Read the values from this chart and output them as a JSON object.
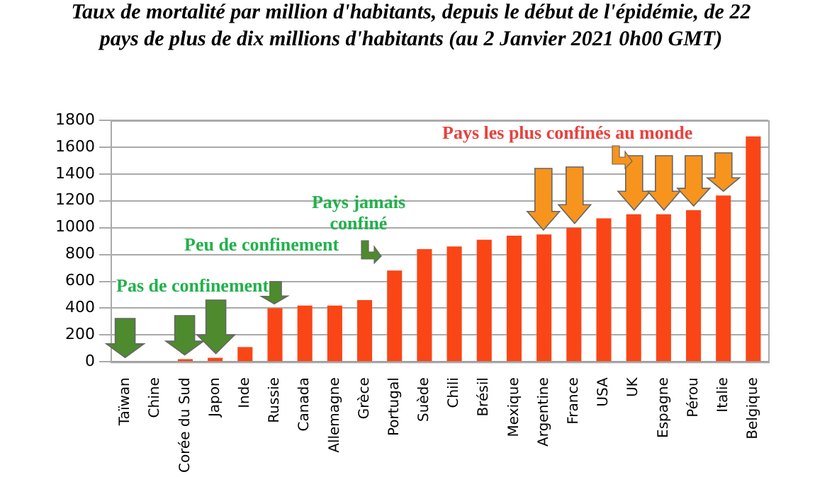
{
  "chart_data": {
    "type": "bar",
    "title": "Taux de mortalité par million d'habitants, depuis le début de l'épidémie, de 22 pays de plus de dix millions d'habitants (au 2 Janvier 2021 0h00 GMT)",
    "categories": [
      "Taïwan",
      "Chine",
      "Corée du Sud",
      "Japon",
      "Inde",
      "Russie",
      "Canada",
      "Allemagne",
      "Grèce",
      "Portugal",
      "Suède",
      "Chili",
      "Brésil",
      "Mexique",
      "Argentine",
      "France",
      "USA",
      "UK",
      "Espagne",
      "Pérou",
      "Italie",
      "Belgique"
    ],
    "values": [
      0,
      0,
      20,
      30,
      110,
      400,
      420,
      420,
      460,
      680,
      840,
      860,
      910,
      940,
      950,
      1000,
      1070,
      1100,
      1100,
      1130,
      1240,
      1680
    ],
    "color": "#fa4616",
    "ylim": [
      0,
      1800
    ],
    "yticks": [
      0,
      200,
      400,
      600,
      800,
      1000,
      1200,
      1400,
      1600,
      1800
    ],
    "grid": "y",
    "annotations": [
      "Pas de confinement",
      "Peu de confinement",
      "Pays jamais confiné",
      "Pays les plus confinés au monde"
    ]
  }
}
